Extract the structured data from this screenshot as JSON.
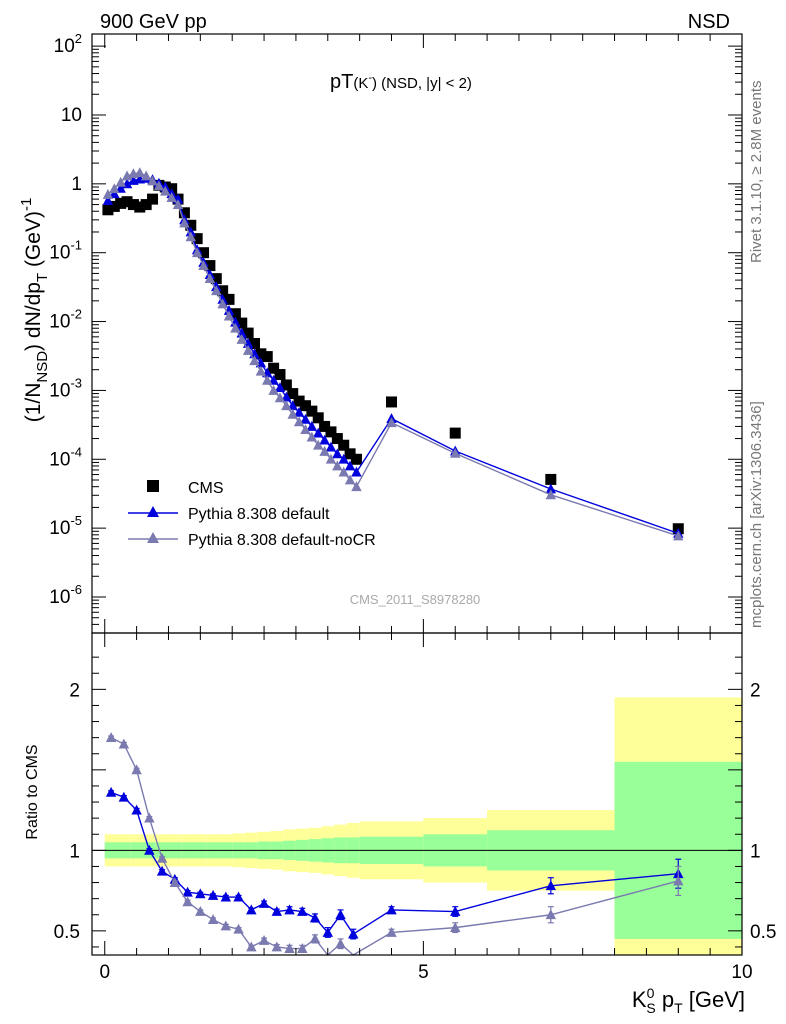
{
  "header": {
    "left": "900 GeV pp",
    "right": "NSD"
  },
  "side": {
    "rivet": "Rivet 3.1.10, ≥ 2.8M events",
    "mcplots": "mcplots.cern.ch [arXiv:1306.3436]"
  },
  "chart_data": [
    {
      "panel": "main",
      "type": "scatter",
      "title": "pT(K⁻) (NSD, |y| < 2)",
      "title_parts": {
        "main": "pT",
        "paren": "(K",
        "sup": "-",
        "close": ")",
        "rest": " (NSD, |y| < 2)"
      },
      "watermark": "CMS_2011_S8978280",
      "ylabel": {
        "a": "(1/N",
        "a_sub": "NSD",
        "b": ") dN/dp",
        "b_sub": "T",
        "c": " (GeV)",
        "c_sup": "-1"
      },
      "yscale": "log",
      "ylim": [
        3e-07,
        150
      ],
      "xlim": [
        -0.2,
        10
      ],
      "yticks": [
        {
          "v": 1e-06,
          "m": "10",
          "e": "-6"
        },
        {
          "v": 1e-05,
          "m": "10",
          "e": "-5"
        },
        {
          "v": 0.0001,
          "m": "10",
          "e": "-4"
        },
        {
          "v": 0.001,
          "m": "10",
          "e": "-3"
        },
        {
          "v": 0.01,
          "m": "10",
          "e": "-2"
        },
        {
          "v": 0.1,
          "m": "10",
          "e": "-1"
        },
        {
          "v": 1,
          "m": "1",
          "e": ""
        },
        {
          "v": 10,
          "m": "10",
          "e": ""
        },
        {
          "v": 100,
          "m": "10",
          "e": "2"
        }
      ],
      "legend_position": "bottom-left",
      "series": [
        {
          "name": "CMS",
          "color": "#000000",
          "marker": "square",
          "x": [
            0.05,
            0.15,
            0.25,
            0.35,
            0.45,
            0.55,
            0.65,
            0.75,
            0.85,
            0.95,
            1.05,
            1.15,
            1.25,
            1.35,
            1.45,
            1.55,
            1.65,
            1.75,
            1.85,
            1.95,
            2.05,
            2.15,
            2.25,
            2.35,
            2.45,
            2.55,
            2.65,
            2.75,
            2.85,
            2.95,
            3.05,
            3.15,
            3.25,
            3.35,
            3.45,
            3.55,
            3.65,
            3.75,
            3.85,
            3.95,
            4.5,
            5.5,
            7.0,
            9.0
          ],
          "y": [
            0.42,
            0.47,
            0.52,
            0.55,
            0.5,
            0.46,
            0.5,
            0.6,
            0.95,
            0.9,
            0.85,
            0.6,
            0.38,
            0.25,
            0.16,
            0.1,
            0.065,
            0.042,
            0.028,
            0.021,
            0.013,
            0.0095,
            0.0068,
            0.0048,
            0.0034,
            0.0031,
            0.0021,
            0.0017,
            0.0012,
            0.0009,
            0.0007,
            0.0006,
            0.0005,
            0.0004,
            0.0003,
            0.00025,
            0.0002,
            0.00016,
            0.00012,
            0.0001,
            0.00068,
            0.00024,
            5.1e-05,
            9.8e-06
          ]
        },
        {
          "name": "Pythia 8.308 default",
          "color": "#0000dd",
          "marker": "triangle",
          "x": [
            0.05,
            0.15,
            0.25,
            0.35,
            0.45,
            0.55,
            0.65,
            0.75,
            0.85,
            0.95,
            1.05,
            1.15,
            1.25,
            1.35,
            1.45,
            1.55,
            1.65,
            1.75,
            1.85,
            1.95,
            2.05,
            2.15,
            2.25,
            2.35,
            2.45,
            2.55,
            2.65,
            2.75,
            2.85,
            2.95,
            3.05,
            3.15,
            3.25,
            3.35,
            3.45,
            3.55,
            3.65,
            3.75,
            3.85,
            3.95,
            4.5,
            5.5,
            7.0,
            9.0
          ],
          "y": [
            0.57,
            0.72,
            0.86,
            1.0,
            1.12,
            1.17,
            1.2,
            1.15,
            1.02,
            0.9,
            0.72,
            0.6,
            0.3,
            0.2,
            0.11,
            0.072,
            0.048,
            0.032,
            0.021,
            0.0145,
            0.0098,
            0.0068,
            0.0048,
            0.0034,
            0.0025,
            0.0018,
            0.0014,
            0.0011,
            0.0008,
            0.0006,
            0.00048,
            0.00038,
            0.0003,
            0.00024,
            0.00019,
            0.00015,
            0.00012,
            0.0001,
            8e-05,
            6.5e-05,
            0.00039,
            0.000132,
            3.7e-05,
            8.4e-06
          ]
        },
        {
          "name": "Pythia 8.308 default-noCR",
          "color": "#7a7ab0",
          "marker": "triangle",
          "x": [
            0.05,
            0.15,
            0.25,
            0.35,
            0.45,
            0.55,
            0.65,
            0.75,
            0.85,
            0.95,
            1.05,
            1.15,
            1.25,
            1.35,
            1.45,
            1.55,
            1.65,
            1.75,
            1.85,
            1.95,
            2.05,
            2.15,
            2.25,
            2.35,
            2.45,
            2.55,
            2.65,
            2.75,
            2.85,
            2.95,
            3.05,
            3.15,
            3.25,
            3.35,
            3.45,
            3.55,
            3.65,
            3.75,
            3.85,
            3.95,
            4.5,
            5.5,
            7.0,
            9.0
          ],
          "y": [
            0.7,
            0.85,
            1.05,
            1.3,
            1.4,
            1.45,
            1.3,
            1.1,
            0.93,
            0.78,
            0.63,
            0.5,
            0.27,
            0.17,
            0.1,
            0.065,
            0.042,
            0.028,
            0.018,
            0.012,
            0.008,
            0.0055,
            0.0038,
            0.0027,
            0.0019,
            0.0014,
            0.001,
            0.00078,
            0.0006,
            0.00045,
            0.00035,
            0.00027,
            0.00021,
            0.00016,
            0.00013,
            0.0001,
            8e-05,
            6.5e-05,
            5e-05,
            4e-05,
            0.00034,
            0.000122,
            3.05e-05,
            7.7e-06
          ]
        }
      ]
    },
    {
      "panel": "ratio",
      "type": "line",
      "ylabel": "Ratio to CMS",
      "xlabel": {
        "a": "K",
        "a_sup": "0",
        "a_sub": "S",
        "b": " p",
        "b_sub": "T",
        "c": " [GeV]"
      },
      "xlim": [
        -0.2,
        10
      ],
      "ylim": [
        0.35,
        2.35
      ],
      "xticks": [
        0,
        5,
        10
      ],
      "yticks": [
        0.5,
        1,
        2
      ],
      "bands": {
        "edges": [
          0,
          0.2,
          0.4,
          0.6,
          0.8,
          1.0,
          1.2,
          1.4,
          1.6,
          1.8,
          2.0,
          2.2,
          2.4,
          2.6,
          2.8,
          3.0,
          3.2,
          3.4,
          3.6,
          3.8,
          4.0,
          5.0,
          6.0,
          8.0,
          10.0
        ],
        "green_half": [
          0.05,
          0.05,
          0.05,
          0.05,
          0.05,
          0.05,
          0.05,
          0.05,
          0.05,
          0.05,
          0.05,
          0.05,
          0.055,
          0.055,
          0.06,
          0.065,
          0.07,
          0.075,
          0.08,
          0.08,
          0.085,
          0.1,
          0.125,
          0.55
        ],
        "yellow_half": [
          0.1,
          0.1,
          0.1,
          0.1,
          0.1,
          0.1,
          0.1,
          0.1,
          0.1,
          0.1,
          0.105,
          0.11,
          0.115,
          0.12,
          0.13,
          0.135,
          0.14,
          0.15,
          0.16,
          0.17,
          0.18,
          0.2,
          0.25,
          0.95
        ],
        "colors": {
          "inner": "#99ff99",
          "outer": "#ffff99"
        }
      },
      "series": [
        {
          "name": "Pythia 8.308 default",
          "color": "#0000dd",
          "x": [
            0.1,
            0.3,
            0.5,
            0.7,
            0.9,
            1.1,
            1.3,
            1.5,
            1.7,
            1.9,
            2.1,
            2.3,
            2.5,
            2.7,
            2.9,
            3.1,
            3.3,
            3.5,
            3.7,
            3.9,
            4.5,
            5.5,
            7.0,
            9.0
          ],
          "y": [
            1.36,
            1.33,
            1.25,
            1.0,
            0.87,
            0.82,
            0.74,
            0.73,
            0.72,
            0.71,
            0.71,
            0.63,
            0.67,
            0.62,
            0.63,
            0.62,
            0.58,
            0.49,
            0.6,
            0.48,
            0.63,
            0.62,
            0.78,
            0.855
          ],
          "err": [
            0.01,
            0.01,
            0.01,
            0.01,
            0.01,
            0.01,
            0.01,
            0.01,
            0.01,
            0.01,
            0.01,
            0.01,
            0.015,
            0.015,
            0.02,
            0.02,
            0.025,
            0.03,
            0.03,
            0.03,
            0.02,
            0.03,
            0.05,
            0.09
          ]
        },
        {
          "name": "Pythia 8.308 default-noCR",
          "color": "#7a7ab0",
          "x": [
            0.1,
            0.3,
            0.5,
            0.7,
            0.9,
            1.1,
            1.3,
            1.5,
            1.7,
            1.9,
            2.1,
            2.3,
            2.5,
            2.7,
            2.9,
            3.1,
            3.3,
            3.5,
            3.7,
            3.9,
            4.5,
            5.5,
            7.0,
            9.0
          ],
          "y": [
            1.7,
            1.66,
            1.5,
            1.2,
            0.95,
            0.8,
            0.68,
            0.62,
            0.57,
            0.53,
            0.51,
            0.4,
            0.44,
            0.4,
            0.39,
            0.39,
            0.45,
            0.3,
            0.42,
            0.3,
            0.49,
            0.52,
            0.6,
            0.81
          ],
          "err": [
            0.01,
            0.01,
            0.01,
            0.01,
            0.01,
            0.01,
            0.01,
            0.01,
            0.01,
            0.01,
            0.01,
            0.01,
            0.015,
            0.015,
            0.02,
            0.02,
            0.025,
            0.03,
            0.03,
            0.03,
            0.02,
            0.03,
            0.05,
            0.09
          ]
        }
      ]
    }
  ]
}
